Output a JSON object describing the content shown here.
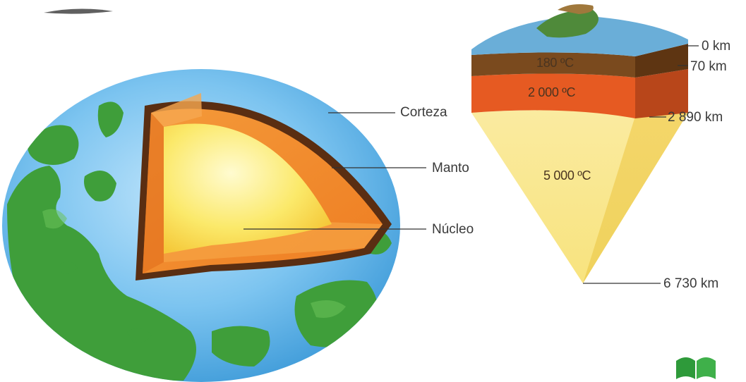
{
  "globe": {
    "labels": {
      "crust": "Corteza",
      "mantle": "Manto",
      "core": "Núcleo"
    }
  },
  "wedge": {
    "temperatures": {
      "crust": "180 ºC",
      "mantle": "2 000 ºC",
      "core": "5 000 ºC"
    },
    "depths": {
      "surface": "0 km",
      "crust_base": "70 km",
      "mantle_base": "2 890 km",
      "center": "6 730 km"
    }
  },
  "colors": {
    "ocean": "#5fb3e8",
    "land": "#3f9e3a",
    "crust": "#6b3a1a",
    "mantle": "#f08a2a",
    "core": "#fbe96a",
    "wedge_mantle": "#e65a22",
    "wedge_core": "#f7e48c"
  }
}
